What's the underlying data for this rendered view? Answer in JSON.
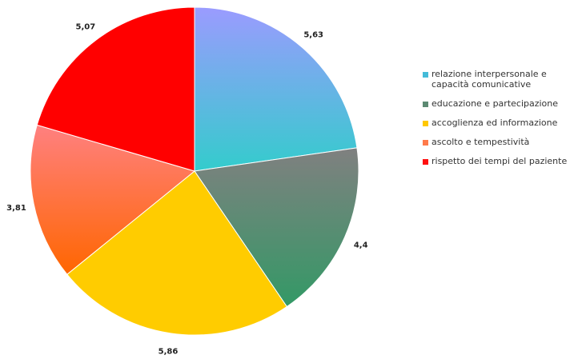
{
  "chart_data": {
    "type": "pie",
    "title": "",
    "series": [
      {
        "values": [
          5.63,
          4.4,
          5.86,
          3.81,
          5.07
        ],
        "data_labels": [
          "5,63",
          "4,4",
          "5,86",
          "3,81",
          "5,07"
        ]
      }
    ],
    "categories": [
      "relazione interpersonale e capacità comunicative",
      "educazione e partecipazione",
      "accoglienza ed informazione",
      "ascolto e tempestività",
      "rispetto dei tempi del paziente"
    ],
    "legend_labels": [
      "relazione interpersonale e capacità comunicative",
      "educazione e partecipazione",
      "accoglienza ed informazione",
      "ascolto e tempestività",
      "rispetto dei tempi del paziente"
    ],
    "legend_colors": [
      "#44BBD8",
      "#5C8A72",
      "#FFC800",
      "#FF7A4A",
      "#FF1010"
    ],
    "slice_gradients": [
      [
        "#9B9BFF",
        "#33CCCC"
      ],
      [
        "#808080",
        "#339966"
      ],
      [
        "#FFCC00",
        "#FFCC00"
      ],
      [
        "#FF8080",
        "#FF6600"
      ],
      [
        "#FF0000",
        "#FF0000"
      ]
    ],
    "legend_position": "right",
    "start": "12 o'clock, clockwise"
  }
}
